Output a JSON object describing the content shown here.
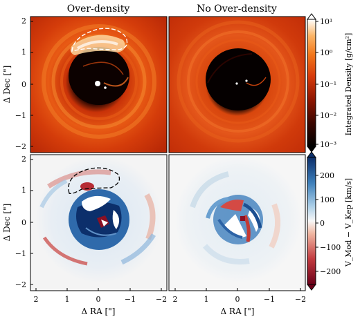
{
  "titles": {
    "left": "Over-density",
    "right": "No Over-density"
  },
  "axes": {
    "ylabel_dec": "Δ Dec [\"]",
    "xlabel_ra": "Δ RA [\"]",
    "x_ticks": [
      "2",
      "1",
      "0",
      "−1",
      "−2"
    ],
    "y_ticks": [
      "2",
      "1",
      "0",
      "−1",
      "−2"
    ],
    "x_range": [
      2.2,
      -2.2
    ],
    "y_range": [
      -2.2,
      2.2
    ]
  },
  "colorbar_density": {
    "label": "Integrated Density [g/cm²]",
    "ticks": [
      "10¹",
      "10⁰",
      "10⁻¹",
      "10⁻²",
      "10⁻³"
    ],
    "range": [
      "1e-3",
      "1e1"
    ],
    "scale": "log",
    "colors": [
      "#000000",
      "#3a0600",
      "#8b1400",
      "#d63a0b",
      "#f2761a",
      "#fbb466",
      "#ffffff"
    ]
  },
  "colorbar_velocity": {
    "label": "V_Mod − V_Kep [km/s]",
    "ticks": [
      "200",
      "100",
      "0",
      "−100",
      "−200"
    ],
    "range": [
      -250,
      250
    ],
    "colors": [
      "#6b0019",
      "#c23a3f",
      "#f0b6a1",
      "#f7f7f7",
      "#a9cde6",
      "#3d7fba",
      "#0c2f6b"
    ]
  }
}
